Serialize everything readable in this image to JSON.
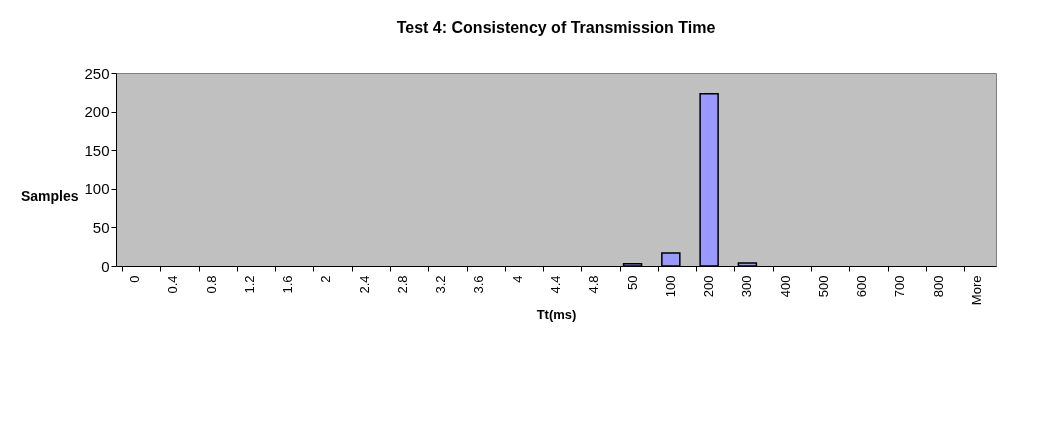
{
  "chart_data": {
    "type": "bar",
    "title": "Test 4: Consistency of Transmission Time",
    "xlabel": "Tt(ms)",
    "ylabel": "Samples",
    "categories": [
      "0",
      "0.4",
      "0.8",
      "1.2",
      "1.6",
      "2",
      "2.4",
      "2.8",
      "3.2",
      "3.6",
      "4",
      "4.4",
      "4.8",
      "50",
      "100",
      "200",
      "300",
      "400",
      "500",
      "600",
      "700",
      "800",
      "More"
    ],
    "values": [
      0,
      0,
      0,
      0,
      0,
      0,
      0,
      0,
      0,
      0,
      0,
      0,
      0,
      3,
      17,
      223,
      4,
      0,
      0,
      0,
      0,
      0,
      0
    ],
    "color": "#9999ff",
    "ylim": [
      0,
      250
    ],
    "yticks": [
      0,
      50,
      100,
      150,
      200,
      250
    ],
    "grid": false
  }
}
